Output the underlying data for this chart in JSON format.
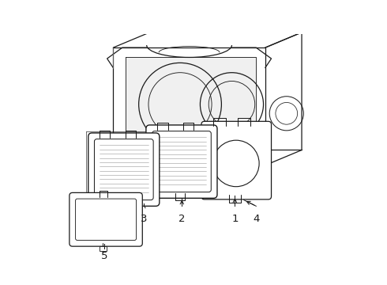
{
  "bg_color": "#ffffff",
  "line_color": "#1a1a1a",
  "lw": 0.9,
  "thin": 0.5,
  "thick": 1.1
}
